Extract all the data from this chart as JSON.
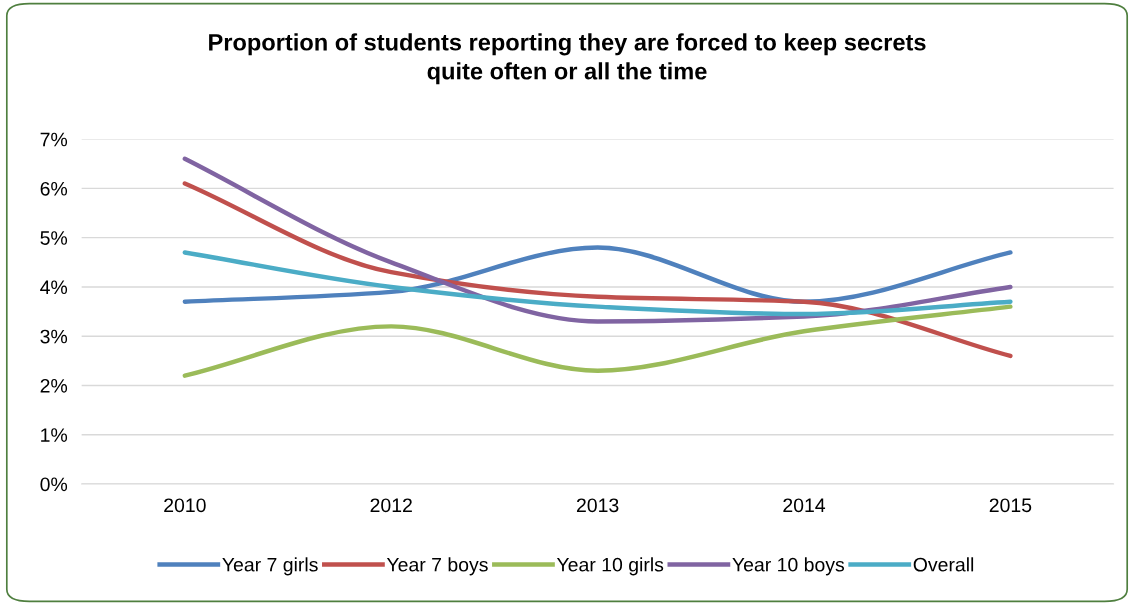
{
  "chart_data": {
    "type": "line",
    "title": "Proportion of students reporting they are forced to keep secrets\nquite often or all the time",
    "categories": [
      "2010",
      "2012",
      "2013",
      "2014",
      "2015"
    ],
    "series": [
      {
        "name": "Year 7 girls",
        "color": "#4f81bd",
        "values": [
          3.7,
          3.9,
          4.8,
          3.7,
          4.7
        ]
      },
      {
        "name": "Year 7 boys",
        "color": "#c0504d",
        "values": [
          6.1,
          4.3,
          3.8,
          3.7,
          2.6
        ]
      },
      {
        "name": "Year 10 girls",
        "color": "#9bbb59",
        "values": [
          2.2,
          3.2,
          2.3,
          3.1,
          3.6
        ]
      },
      {
        "name": "Year 10 boys",
        "color": "#8064a2",
        "values": [
          6.6,
          4.5,
          3.3,
          3.4,
          4.0
        ]
      },
      {
        "name": "Overall",
        "color": "#4bacc6",
        "values": [
          4.7,
          4.0,
          3.6,
          3.45,
          3.7
        ]
      }
    ],
    "ylim": [
      0,
      7
    ],
    "yticks": [
      {
        "value": 0,
        "label": "0%"
      },
      {
        "value": 1,
        "label": "1%"
      },
      {
        "value": 2,
        "label": "2%"
      },
      {
        "value": 3,
        "label": "3%"
      },
      {
        "value": 4,
        "label": "4%"
      },
      {
        "value": 5,
        "label": "5%"
      },
      {
        "value": 6,
        "label": "6%"
      },
      {
        "value": 7,
        "label": "7%"
      }
    ],
    "grid": "y",
    "legend": "bottom",
    "marker": "none",
    "line_style": "solid"
  }
}
